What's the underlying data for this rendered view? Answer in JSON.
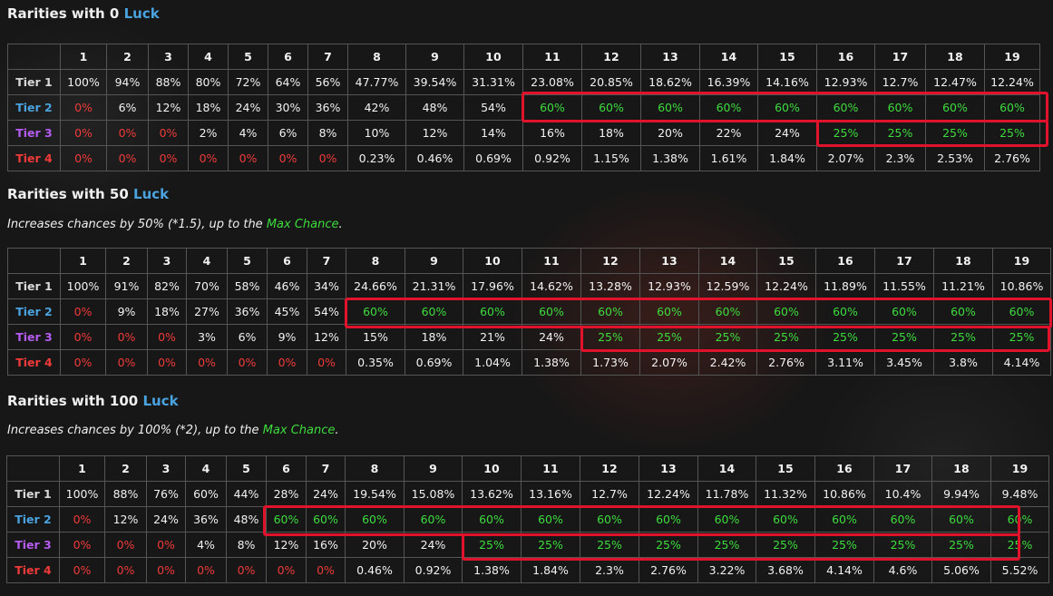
{
  "columns": [
    "1",
    "2",
    "3",
    "4",
    "5",
    "6",
    "7",
    "8",
    "9",
    "10",
    "11",
    "12",
    "13",
    "14",
    "15",
    "16",
    "17",
    "18",
    "19"
  ],
  "tier_labels": [
    "Tier 1",
    "Tier 2",
    "Tier 3",
    "Tier 4"
  ],
  "colors": {
    "tier1": "#d9d9d9",
    "tier2": "#4aa3df",
    "tier3": "#b55cf0",
    "tier4": "#f03a3a",
    "max_chance": "#3ddc3d",
    "highlight_box": "#e1122b",
    "background": "#171717"
  },
  "sections": [
    {
      "title_prefix": "Rarities with 0 ",
      "title_luck": "Luck",
      "note": null,
      "rows": [
        [
          "100%",
          "94%",
          "88%",
          "80%",
          "72%",
          "64%",
          "56%",
          "47.77%",
          "39.54%",
          "31.31%",
          "23.08%",
          "20.85%",
          "18.62%",
          "16.39%",
          "14.16%",
          "12.93%",
          "12.7%",
          "12.47%",
          "12.24%"
        ],
        [
          "0%",
          "6%",
          "12%",
          "18%",
          "24%",
          "30%",
          "36%",
          "42%",
          "48%",
          "54%",
          "60%",
          "60%",
          "60%",
          "60%",
          "60%",
          "60%",
          "60%",
          "60%",
          "60%"
        ],
        [
          "0%",
          "0%",
          "0%",
          "2%",
          "4%",
          "6%",
          "8%",
          "10%",
          "12%",
          "14%",
          "16%",
          "18%",
          "20%",
          "22%",
          "24%",
          "25%",
          "25%",
          "25%",
          "25%"
        ],
        [
          "0%",
          "0%",
          "0%",
          "0%",
          "0%",
          "0%",
          "0%",
          "0.23%",
          "0.46%",
          "0.69%",
          "0.92%",
          "1.15%",
          "1.38%",
          "1.61%",
          "1.84%",
          "2.07%",
          "2.3%",
          "2.53%",
          "2.76%"
        ]
      ]
    },
    {
      "title_prefix": "Rarities with 50 ",
      "title_luck": "Luck",
      "note": {
        "text": "Increases chances by 50% (*1.5), up to the ",
        "highlight": "Max Chance",
        "suffix": "."
      },
      "rows": [
        [
          "100%",
          "91%",
          "82%",
          "70%",
          "58%",
          "46%",
          "34%",
          "24.66%",
          "21.31%",
          "17.96%",
          "14.62%",
          "13.28%",
          "12.93%",
          "12.59%",
          "12.24%",
          "11.89%",
          "11.55%",
          "11.21%",
          "10.86%"
        ],
        [
          "0%",
          "9%",
          "18%",
          "27%",
          "36%",
          "45%",
          "54%",
          "60%",
          "60%",
          "60%",
          "60%",
          "60%",
          "60%",
          "60%",
          "60%",
          "60%",
          "60%",
          "60%",
          "60%"
        ],
        [
          "0%",
          "0%",
          "0%",
          "3%",
          "6%",
          "9%",
          "12%",
          "15%",
          "18%",
          "21%",
          "24%",
          "25%",
          "25%",
          "25%",
          "25%",
          "25%",
          "25%",
          "25%",
          "25%"
        ],
        [
          "0%",
          "0%",
          "0%",
          "0%",
          "0%",
          "0%",
          "0%",
          "0.35%",
          "0.69%",
          "1.04%",
          "1.38%",
          "1.73%",
          "2.07%",
          "2.42%",
          "2.76%",
          "3.11%",
          "3.45%",
          "3.8%",
          "4.14%"
        ]
      ]
    },
    {
      "title_prefix": "Rarities with 100 ",
      "title_luck": "Luck",
      "note": {
        "text": "Increases chances by 100% (*2), up to the ",
        "highlight": "Max Chance",
        "suffix": "."
      },
      "rows": [
        [
          "100%",
          "88%",
          "76%",
          "60%",
          "44%",
          "28%",
          "24%",
          "19.54%",
          "15.08%",
          "13.62%",
          "13.16%",
          "12.7%",
          "12.24%",
          "11.78%",
          "11.32%",
          "10.86%",
          "10.4%",
          "9.94%",
          "9.48%"
        ],
        [
          "0%",
          "12%",
          "24%",
          "36%",
          "48%",
          "60%",
          "60%",
          "60%",
          "60%",
          "60%",
          "60%",
          "60%",
          "60%",
          "60%",
          "60%",
          "60%",
          "60%",
          "60%",
          "60%"
        ],
        [
          "0%",
          "0%",
          "0%",
          "4%",
          "8%",
          "12%",
          "16%",
          "20%",
          "24%",
          "25%",
          "25%",
          "25%",
          "25%",
          "25%",
          "25%",
          "25%",
          "25%",
          "25%",
          "25%"
        ],
        [
          "0%",
          "0%",
          "0%",
          "0%",
          "0%",
          "0%",
          "0%",
          "0.46%",
          "0.92%",
          "1.38%",
          "1.84%",
          "2.3%",
          "2.76%",
          "3.22%",
          "3.68%",
          "4.14%",
          "4.6%",
          "5.06%",
          "5.52%"
        ]
      ]
    }
  ]
}
